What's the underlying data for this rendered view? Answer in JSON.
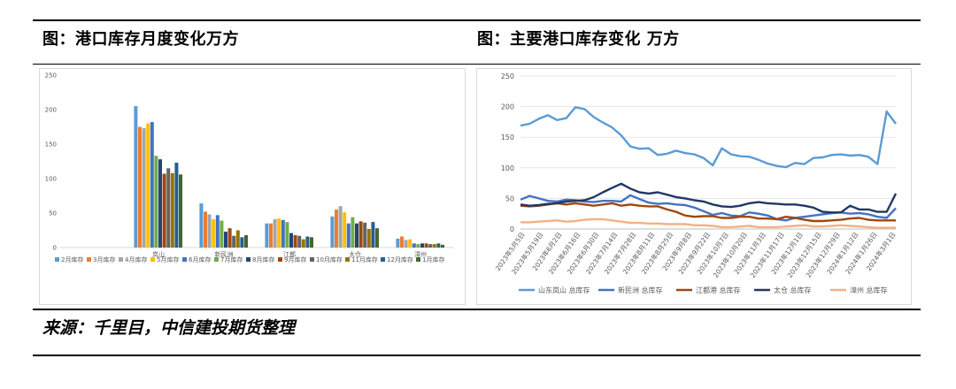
{
  "header": {
    "left_title": "图：港口库存月度变化万方",
    "right_title": "图：主要港口库存变化 万方"
  },
  "footer": {
    "source": "来源：千里目，中信建投期货整理"
  },
  "chart_data": [
    {
      "type": "bar",
      "title": "",
      "ylim": [
        0,
        250
      ],
      "yticks": [
        0,
        50,
        100,
        150,
        200,
        250
      ],
      "categories": [
        "",
        "岚山",
        "新民洲",
        "江都",
        "太仓",
        "漳州"
      ],
      "series": [
        {
          "name": "2月库存",
          "color": "#5B9BD5",
          "values": [
            null,
            205,
            64,
            35,
            45,
            13
          ]
        },
        {
          "name": "3月库存",
          "color": "#ED7D31",
          "values": [
            null,
            175,
            52,
            35,
            55,
            16
          ]
        },
        {
          "name": "4月库存",
          "color": "#A5A5A5",
          "values": [
            null,
            173,
            48,
            41,
            60,
            11
          ]
        },
        {
          "name": "5月库存",
          "color": "#FFC000",
          "values": [
            null,
            180,
            41,
            42,
            51,
            12
          ]
        },
        {
          "name": "6月库存",
          "color": "#4472C4",
          "values": [
            null,
            182,
            47,
            40,
            35,
            6
          ]
        },
        {
          "name": "7月库存",
          "color": "#70AD47",
          "values": [
            null,
            133,
            39,
            37,
            44,
            5
          ]
        },
        {
          "name": "8月库存",
          "color": "#264478",
          "values": [
            null,
            128,
            23,
            21,
            35,
            6
          ]
        },
        {
          "name": "9月库存",
          "color": "#9E480E",
          "values": [
            null,
            107,
            28,
            18,
            38,
            6
          ]
        },
        {
          "name": "10月库存",
          "color": "#636363",
          "values": [
            null,
            115,
            17,
            17,
            36,
            5
          ]
        },
        {
          "name": "11月库存",
          "color": "#997300",
          "values": [
            null,
            108,
            25,
            12,
            27,
            5
          ]
        },
        {
          "name": "12月库存",
          "color": "#255E91",
          "values": [
            null,
            123,
            15,
            16,
            37,
            6
          ]
        },
        {
          "name": "1月库存",
          "color": "#43682B",
          "values": [
            null,
            106,
            18,
            15,
            28,
            4
          ]
        }
      ]
    },
    {
      "type": "line",
      "title": "",
      "ylim": [
        0,
        250
      ],
      "yticks": [
        0,
        50,
        100,
        150,
        200,
        250
      ],
      "x": [
        "2023年5月5日",
        "2023年5月12日",
        "2023年5月19日",
        "2023年5月26日",
        "2023年6月2日",
        "2023年6月9日",
        "2023年6月16日",
        "2023年6月23日",
        "2023年6月30日",
        "2023年7月7日",
        "2023年7月14日",
        "2023年7月21日",
        "2023年7月28日",
        "2023年8月4日",
        "2023年8月11日",
        "2023年8月18日",
        "2023年8月25日",
        "2023年9月1日",
        "2023年9月8日",
        "2023年9月15日",
        "2023年9月22日",
        "2023年9月29日",
        "2023年10月6日",
        "2023年10月13日",
        "2023年10月20日",
        "2023年10月27日",
        "2023年11月3日",
        "2023年11月10日",
        "2023年11月17日",
        "2023年11月24日",
        "2023年12月1日",
        "2023年12月8日",
        "2023年12月15日",
        "2023年12月22日",
        "2023年12月29日",
        "2024年1月5日",
        "2024年1月12日",
        "2024年1月19日",
        "2024年1月26日",
        "2024年2月2日",
        "2024年2月23日",
        "2024年3月1日"
      ],
      "x_tick_labels": [
        "2023年5月5日",
        "2023年5月19日",
        "2023年6月2日",
        "2023年6月16日",
        "2023年6月30日",
        "2023年7月14日",
        "2023年7月28日",
        "2023年8月11日",
        "2023年8月25日",
        "2023年9月8日",
        "2023年9月22日",
        "2023年10月7日",
        "2023年10月20日",
        "2023年11月3日",
        "2023年11月17日",
        "2023年12月1日",
        "2023年12月15日",
        "2023年12月29日",
        "2024年1月12日",
        "2024年1月26日",
        "2024年3月1日"
      ],
      "legend": "bottom",
      "series": [
        {
          "name": "山东岚山 总库存",
          "color": "#5B9BD5",
          "values": [
            169,
            172,
            180,
            186,
            178,
            181,
            199,
            196,
            183,
            174,
            166,
            153,
            135,
            131,
            132,
            121,
            123,
            128,
            124,
            122,
            116,
            104,
            132,
            122,
            119,
            118,
            113,
            107,
            103,
            101,
            108,
            106,
            116,
            117,
            121,
            122,
            120,
            121,
            118,
            106,
            192,
            172
          ]
        },
        {
          "name": "新民洲 总库存",
          "color": "#4472C4",
          "values": [
            48,
            54,
            50,
            46,
            45,
            48,
            47,
            45,
            44,
            46,
            46,
            45,
            55,
            49,
            43,
            41,
            42,
            40,
            39,
            35,
            29,
            23,
            26,
            22,
            21,
            27,
            25,
            22,
            16,
            14,
            18,
            20,
            22,
            24,
            26,
            27,
            25,
            26,
            24,
            20,
            18,
            34
          ]
        },
        {
          "name": "江都港 总库存",
          "color": "#9E480E",
          "values": [
            38,
            37,
            38,
            40,
            42,
            40,
            42,
            40,
            38,
            40,
            42,
            38,
            40,
            38,
            37,
            37,
            32,
            28,
            22,
            20,
            21,
            21,
            18,
            18,
            20,
            20,
            17,
            17,
            16,
            20,
            18,
            15,
            13,
            13,
            14,
            15,
            17,
            18,
            15,
            14,
            14,
            14
          ]
        },
        {
          "name": "太仓 总库存",
          "color": "#203864",
          "values": [
            40,
            38,
            39,
            41,
            42,
            45,
            46,
            47,
            52,
            60,
            67,
            74,
            66,
            60,
            58,
            60,
            56,
            52,
            50,
            47,
            45,
            40,
            37,
            36,
            38,
            42,
            44,
            42,
            41,
            40,
            40,
            38,
            35,
            28,
            27,
            27,
            38,
            32,
            32,
            28,
            28,
            58
          ]
        },
        {
          "name": "漳州 总库存",
          "color": "#F4B183",
          "values": [
            11,
            11,
            12,
            13,
            14,
            12,
            13,
            15,
            16,
            16,
            14,
            12,
            10,
            10,
            9,
            9,
            8,
            8,
            8,
            6,
            6,
            5,
            3,
            3,
            4,
            5,
            3,
            3,
            3,
            4,
            5,
            6,
            4,
            4,
            5,
            6,
            5,
            4,
            3,
            2,
            2,
            2
          ]
        }
      ]
    }
  ]
}
